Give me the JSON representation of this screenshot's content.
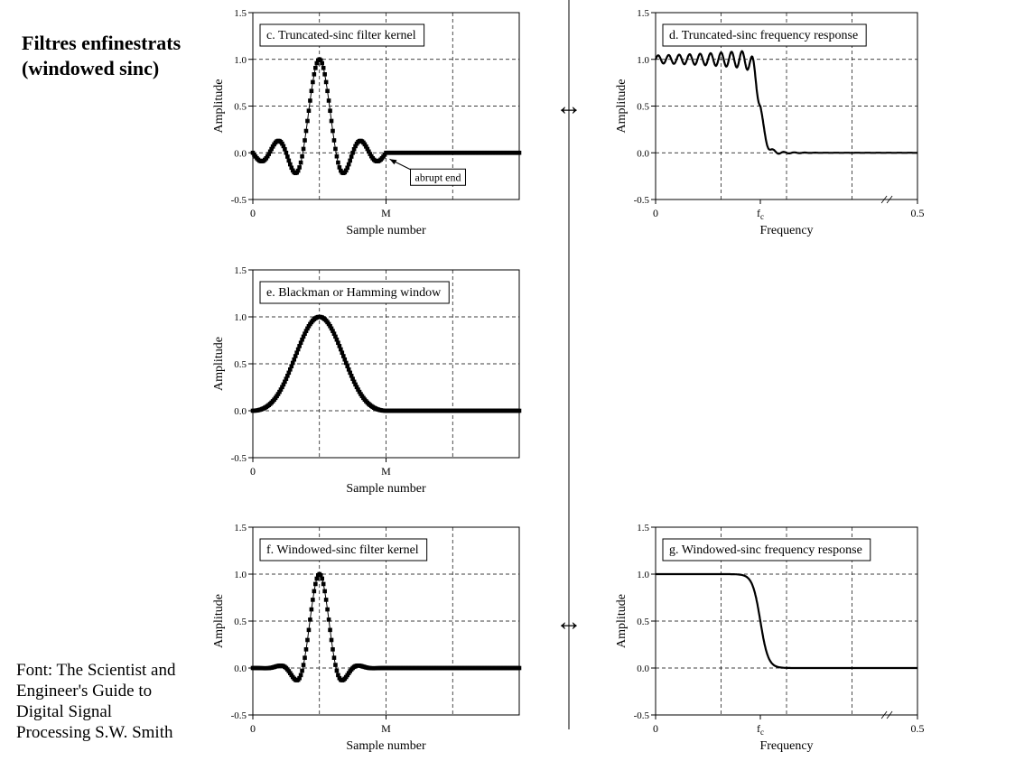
{
  "slide": {
    "title_lines": [
      "Filtres enfinestrats",
      "(windowed sinc)"
    ],
    "credit_lines": [
      "Font: The Scientist and",
      "Engineer's Guide to",
      "Digital Signal",
      "Processing S.W. Smith"
    ],
    "arrow_symbol": "↔"
  },
  "chart_data": [
    {
      "id": "c",
      "type": "scatter",
      "title": "c. Truncated-sinc filter kernel",
      "xlabel": "Sample number",
      "ylabel": "Amplitude",
      "xticks": [
        {
          "v": 0,
          "label": "0"
        },
        {
          "v": 100,
          "label": "M"
        }
      ],
      "yticks": [
        {
          "v": -0.5,
          "label": "-0.5"
        },
        {
          "v": 0.0,
          "label": "0.0"
        },
        {
          "v": 0.5,
          "label": "0.5"
        },
        {
          "v": 1.0,
          "label": "1.0"
        },
        {
          "v": 1.5,
          "label": "1.5"
        }
      ],
      "xlim": [
        0,
        200
      ],
      "ylim": [
        -0.5,
        1.5
      ],
      "kernel": {
        "kind": "truncated",
        "M": 100,
        "fc": 0.04
      },
      "annotation": {
        "text": "abrupt end",
        "x": 100,
        "y": 0.0
      },
      "grid": true
    },
    {
      "id": "d",
      "type": "line",
      "title": "d. Truncated-sinc frequency response",
      "xlabel": "Frequency",
      "ylabel": "Amplitude",
      "xticks": [
        {
          "v": 0,
          "label": "0"
        },
        {
          "v": 0.2,
          "label": "fc"
        },
        {
          "v": 0.5,
          "label": "0.5"
        }
      ],
      "yticks": [
        {
          "v": -0.5,
          "label": "-0.5"
        },
        {
          "v": 0.0,
          "label": "0.0"
        },
        {
          "v": 0.5,
          "label": "0.5"
        },
        {
          "v": 1.0,
          "label": "1.0"
        },
        {
          "v": 1.5,
          "label": "1.5"
        }
      ],
      "xlim": [
        0,
        0.5
      ],
      "ylim": [
        -0.5,
        1.5
      ],
      "response": {
        "kind": "truncated",
        "fc": 0.2
      },
      "grid": true
    },
    {
      "id": "e",
      "type": "scatter",
      "title": "e. Blackman or Hamming window",
      "xlabel": "Sample number",
      "ylabel": "Amplitude",
      "xticks": [
        {
          "v": 0,
          "label": "0"
        },
        {
          "v": 100,
          "label": "M"
        }
      ],
      "yticks": [
        {
          "v": -0.5,
          "label": "-0.5"
        },
        {
          "v": 0.0,
          "label": "0.0"
        },
        {
          "v": 0.5,
          "label": "0.5"
        },
        {
          "v": 1.0,
          "label": "1.0"
        },
        {
          "v": 1.5,
          "label": "1.5"
        }
      ],
      "xlim": [
        0,
        200
      ],
      "ylim": [
        -0.5,
        1.5
      ],
      "kernel": {
        "kind": "window",
        "M": 100
      },
      "grid": true
    },
    {
      "id": "f",
      "type": "scatter",
      "title": "f. Windowed-sinc filter kernel",
      "xlabel": "Sample number",
      "ylabel": "Amplitude",
      "xticks": [
        {
          "v": 0,
          "label": "0"
        },
        {
          "v": 100,
          "label": "M"
        }
      ],
      "yticks": [
        {
          "v": -0.5,
          "label": "-0.5"
        },
        {
          "v": 0.0,
          "label": "0.0"
        },
        {
          "v": 0.5,
          "label": "0.5"
        },
        {
          "v": 1.0,
          "label": "1.0"
        },
        {
          "v": 1.5,
          "label": "1.5"
        }
      ],
      "xlim": [
        0,
        200
      ],
      "ylim": [
        -0.5,
        1.5
      ],
      "kernel": {
        "kind": "windowed",
        "M": 100,
        "fc": 0.04
      },
      "grid": true
    },
    {
      "id": "g",
      "type": "line",
      "title": "g. Windowed-sinc frequency response",
      "xlabel": "Frequency",
      "ylabel": "Amplitude",
      "xticks": [
        {
          "v": 0,
          "label": "0"
        },
        {
          "v": 0.2,
          "label": "fc"
        },
        {
          "v": 0.5,
          "label": "0.5"
        }
      ],
      "yticks": [
        {
          "v": -0.5,
          "label": "-0.5"
        },
        {
          "v": 0.0,
          "label": "0.0"
        },
        {
          "v": 0.5,
          "label": "0.5"
        },
        {
          "v": 1.0,
          "label": "1.0"
        },
        {
          "v": 1.5,
          "label": "1.5"
        }
      ],
      "xlim": [
        0,
        0.5
      ],
      "ylim": [
        -0.5,
        1.5
      ],
      "response": {
        "kind": "windowed",
        "fc": 0.2
      },
      "grid": true
    }
  ]
}
